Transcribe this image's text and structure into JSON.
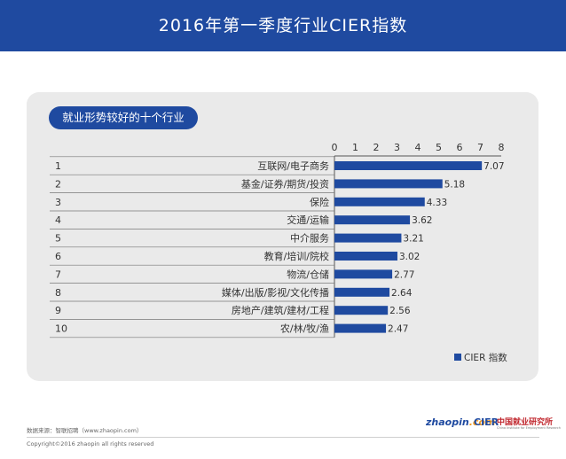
{
  "header": {
    "title": "2016年第一季度行业CIER指数"
  },
  "panel": {
    "pill_label": "就业形势较好的十个行业"
  },
  "chart_data": {
    "type": "bar",
    "orientation": "horizontal",
    "xlim": [
      0,
      8
    ],
    "xticks": [
      "0",
      "1",
      "2",
      "3",
      "4",
      "5",
      "6",
      "7",
      "8"
    ],
    "ranks": [
      "1",
      "2",
      "3",
      "4",
      "5",
      "6",
      "7",
      "8",
      "9",
      "10"
    ],
    "categories": [
      "互联网/电子商务",
      "基金/证券/期货/投资",
      "保险",
      "交通/运输",
      "中介服务",
      "教育/培训/院校",
      "物流/仓储",
      "媒体/出版/影视/文化传播",
      "房地产/建筑/建材/工程",
      "农/林/牧/渔"
    ],
    "values": [
      7.07,
      5.18,
      4.33,
      3.62,
      3.21,
      3.02,
      2.77,
      2.64,
      2.56,
      2.47
    ],
    "value_labels": [
      "7.07",
      "5.18",
      "4.33",
      "3.62",
      "3.21",
      "3.02",
      "2.77",
      "2.64",
      "2.56",
      "2.47"
    ],
    "series": [
      {
        "name": "CIER 指数",
        "color": "#1f4aa0"
      }
    ],
    "legend_position": "bottom-right",
    "grid": false
  },
  "footer": {
    "source": "数据来源：智联招聘（www.zhaopin.com）",
    "copyright": "Copyright©2016 zhaopin all rights reserved",
    "logo_zhaopin_main": "zhaopin",
    "logo_zhaopin_suffix": ".com",
    "logo_cier": "CIER",
    "logo_cier_cn": "中国就业研究所",
    "logo_cier_en": "China Institute for Employment Research"
  }
}
